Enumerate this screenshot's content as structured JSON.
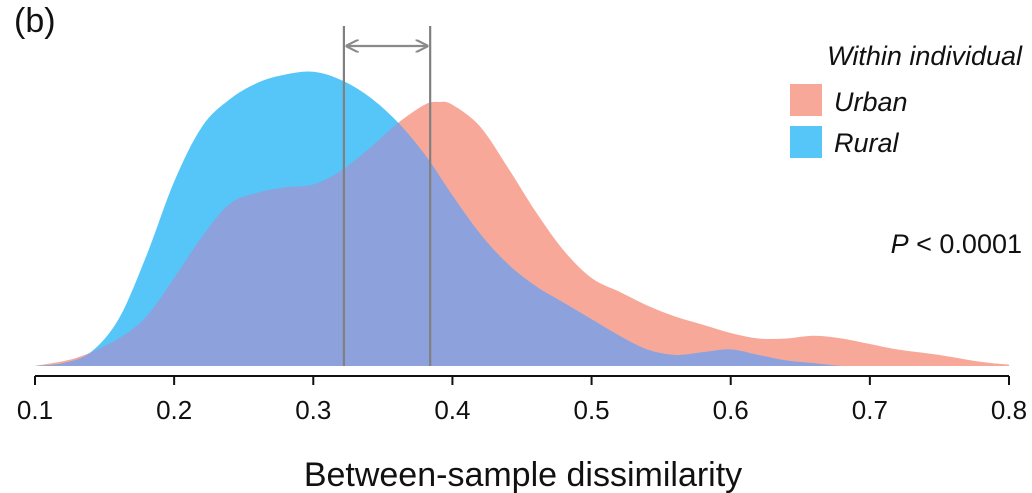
{
  "panel_label": "(b)",
  "chart_data": {
    "type": "area",
    "title": "",
    "xlabel": "Between-sample dissimilarity",
    "ylabel": "",
    "xlim": [
      0.1,
      0.8
    ],
    "x_ticks": [
      "0.1",
      "0.2",
      "0.3",
      "0.4",
      "0.5",
      "0.6",
      "0.7",
      "0.8"
    ],
    "legend_title": "Within individual",
    "legend_position": "top-right",
    "annotation_p": "P",
    "annotation_rest": " < 0.0001",
    "series": [
      {
        "name": "Urban",
        "color": "#f8a898",
        "x": [
          0.1,
          0.13,
          0.16,
          0.18,
          0.2,
          0.22,
          0.24,
          0.26,
          0.28,
          0.3,
          0.32,
          0.34,
          0.36,
          0.38,
          0.39,
          0.4,
          0.42,
          0.44,
          0.46,
          0.48,
          0.5,
          0.52,
          0.54,
          0.56,
          0.58,
          0.6,
          0.62,
          0.64,
          0.66,
          0.68,
          0.7,
          0.72,
          0.75,
          0.78,
          0.8
        ],
        "density": [
          0.0,
          0.03,
          0.1,
          0.18,
          0.32,
          0.47,
          0.59,
          0.63,
          0.65,
          0.66,
          0.71,
          0.79,
          0.88,
          0.95,
          0.96,
          0.95,
          0.87,
          0.72,
          0.56,
          0.42,
          0.32,
          0.27,
          0.22,
          0.18,
          0.15,
          0.12,
          0.1,
          0.1,
          0.11,
          0.1,
          0.08,
          0.06,
          0.04,
          0.015,
          0.005
        ]
      },
      {
        "name": "Rural",
        "color": "#55c6f7",
        "x": [
          0.1,
          0.12,
          0.14,
          0.16,
          0.18,
          0.2,
          0.22,
          0.24,
          0.26,
          0.28,
          0.3,
          0.32,
          0.34,
          0.36,
          0.38,
          0.4,
          0.42,
          0.44,
          0.46,
          0.48,
          0.5,
          0.52,
          0.54,
          0.56,
          0.58,
          0.6,
          0.62,
          0.64,
          0.66,
          0.68,
          0.7
        ],
        "density": [
          0.0,
          0.01,
          0.05,
          0.17,
          0.4,
          0.67,
          0.87,
          0.97,
          1.03,
          1.06,
          1.07,
          1.04,
          0.98,
          0.89,
          0.77,
          0.62,
          0.48,
          0.37,
          0.29,
          0.23,
          0.17,
          0.11,
          0.06,
          0.04,
          0.05,
          0.06,
          0.04,
          0.02,
          0.01,
          0.0,
          0.0
        ]
      }
    ],
    "overlap_color": "#8da1dc",
    "reference_lines": [
      0.322,
      0.384
    ]
  }
}
